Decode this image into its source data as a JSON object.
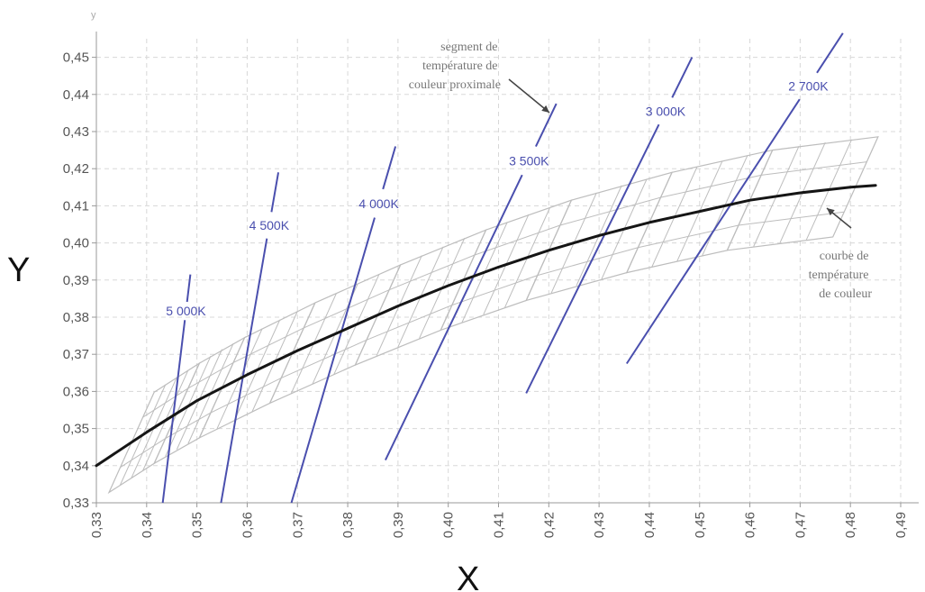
{
  "chart_data": {
    "type": "line",
    "xlabel": "X",
    "ylabel": "Y",
    "y_axis_small_label": "y",
    "xlim": [
      0.33,
      0.49
    ],
    "ylim": [
      0.33,
      0.455
    ],
    "grid": true,
    "x_ticks": [
      "0,33",
      "0,34",
      "0,35",
      "0,36",
      "0,37",
      "0,38",
      "0,39",
      "0,40",
      "0,41",
      "0,42",
      "0,43",
      "0,44",
      "0,45",
      "0,46",
      "0,47",
      "0,48",
      "0,49"
    ],
    "y_ticks": [
      "0,33",
      "0,34",
      "0,35",
      "0,36",
      "0,37",
      "0,38",
      "0,39",
      "0,40",
      "0,41",
      "0,42",
      "0,43",
      "0,44",
      "0,45"
    ],
    "locus": {
      "x": [
        0.33,
        0.34,
        0.35,
        0.36,
        0.37,
        0.38,
        0.39,
        0.4,
        0.41,
        0.42,
        0.43,
        0.44,
        0.45,
        0.46,
        0.47,
        0.48,
        0.485
      ],
      "y": [
        0.34,
        0.349,
        0.3575,
        0.3645,
        0.371,
        0.377,
        0.383,
        0.3885,
        0.3935,
        0.398,
        0.402,
        0.4055,
        0.4085,
        0.4115,
        0.4135,
        0.415,
        0.4155
      ]
    },
    "isotherms": [
      {
        "label": "5 000K",
        "x1": 0.3432,
        "y1": 0.33,
        "x2": 0.3487,
        "y2": 0.3915
      },
      {
        "label": "4 500K",
        "x1": 0.3548,
        "y1": 0.33,
        "x2": 0.3662,
        "y2": 0.419
      },
      {
        "label": "4 000K",
        "x1": 0.3688,
        "y1": 0.33,
        "x2": 0.3895,
        "y2": 0.426
      },
      {
        "label": "3 500K",
        "x1": 0.3875,
        "y1": 0.3415,
        "x2": 0.4215,
        "y2": 0.4375
      },
      {
        "label": "3 000K",
        "x1": 0.4155,
        "y1": 0.3595,
        "x2": 0.4485,
        "y2": 0.45
      },
      {
        "label": "2 700K",
        "x1": 0.4355,
        "y1": 0.3675,
        "x2": 0.4785,
        "y2": 0.4565
      }
    ],
    "annotations": {
      "segment": [
        "segment de",
        "température de",
        "couleur proximale"
      ],
      "curve": [
        "courbe de",
        "température",
        "de couleur"
      ]
    }
  },
  "colors": {
    "locus": "#151515",
    "isotherm": "#4a4fae",
    "grid_outline": "#bdbdbd",
    "gridlines": "#d8d8d8",
    "tick_text": "#555555",
    "note_text": "#777777"
  }
}
